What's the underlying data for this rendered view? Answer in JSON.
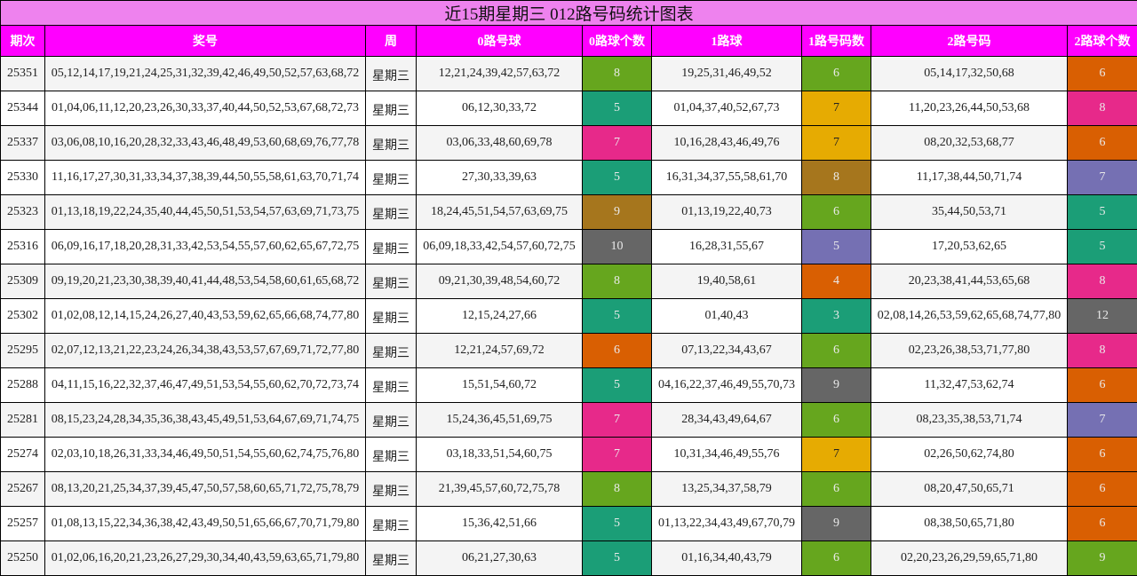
{
  "title": "近15期星期三 012路号码统计图表",
  "headers": [
    "期次",
    "奖号",
    "周",
    "0路号球",
    "0路球个数",
    "1路球",
    "1路号码数",
    "2路号码",
    "2路球个数"
  ],
  "palette": {
    "title_bg": "#ee82ee",
    "header_bg": "#ff00ff",
    "green": "#66a61e",
    "teal": "#1b9e77",
    "pink": "#e7298a",
    "brown": "#a6761d",
    "gray": "#666666",
    "orange": "#d95f02",
    "gold": "#e6ab02",
    "purple": "#7570b3"
  },
  "rows": [
    {
      "issue": "25351",
      "numbers": "05,12,14,17,19,21,24,25,31,32,39,42,46,49,50,52,57,63,68,72",
      "week": "星期三",
      "r0": "12,21,24,39,42,57,63,72",
      "r0_count": "8",
      "r0_color": "#66a61e",
      "r1": "19,25,31,46,49,52",
      "r1_count": "6",
      "r1_color": "#66a61e",
      "r2": "05,14,17,32,50,68",
      "r2_count": "6",
      "r2_color": "#d95f02"
    },
    {
      "issue": "25344",
      "numbers": "01,04,06,11,12,20,23,26,30,33,37,40,44,50,52,53,67,68,72,73",
      "week": "星期三",
      "r0": "06,12,30,33,72",
      "r0_count": "5",
      "r0_color": "#1b9e77",
      "r1": "01,04,37,40,52,67,73",
      "r1_count": "7",
      "r1_color": "#e6ab02",
      "r2": "11,20,23,26,44,50,53,68",
      "r2_count": "8",
      "r2_color": "#e7298a"
    },
    {
      "issue": "25337",
      "numbers": "03,06,08,10,16,20,28,32,33,43,46,48,49,53,60,68,69,76,77,78",
      "week": "星期三",
      "r0": "03,06,33,48,60,69,78",
      "r0_count": "7",
      "r0_color": "#e7298a",
      "r1": "10,16,28,43,46,49,76",
      "r1_count": "7",
      "r1_color": "#e6ab02",
      "r2": "08,20,32,53,68,77",
      "r2_count": "6",
      "r2_color": "#d95f02"
    },
    {
      "issue": "25330",
      "numbers": "11,16,17,27,30,31,33,34,37,38,39,44,50,55,58,61,63,70,71,74",
      "week": "星期三",
      "r0": "27,30,33,39,63",
      "r0_count": "5",
      "r0_color": "#1b9e77",
      "r1": "16,31,34,37,55,58,61,70",
      "r1_count": "8",
      "r1_color": "#a6761d",
      "r2": "11,17,38,44,50,71,74",
      "r2_count": "7",
      "r2_color": "#7570b3"
    },
    {
      "issue": "25323",
      "numbers": "01,13,18,19,22,24,35,40,44,45,50,51,53,54,57,63,69,71,73,75",
      "week": "星期三",
      "r0": "18,24,45,51,54,57,63,69,75",
      "r0_count": "9",
      "r0_color": "#a6761d",
      "r1": "01,13,19,22,40,73",
      "r1_count": "6",
      "r1_color": "#66a61e",
      "r2": "35,44,50,53,71",
      "r2_count": "5",
      "r2_color": "#1b9e77"
    },
    {
      "issue": "25316",
      "numbers": "06,09,16,17,18,20,28,31,33,42,53,54,55,57,60,62,65,67,72,75",
      "week": "星期三",
      "r0": "06,09,18,33,42,54,57,60,72,75",
      "r0_count": "10",
      "r0_color": "#666666",
      "r1": "16,28,31,55,67",
      "r1_count": "5",
      "r1_color": "#7570b3",
      "r2": "17,20,53,62,65",
      "r2_count": "5",
      "r2_color": "#1b9e77"
    },
    {
      "issue": "25309",
      "numbers": "09,19,20,21,23,30,38,39,40,41,44,48,53,54,58,60,61,65,68,72",
      "week": "星期三",
      "r0": "09,21,30,39,48,54,60,72",
      "r0_count": "8",
      "r0_color": "#66a61e",
      "r1": "19,40,58,61",
      "r1_count": "4",
      "r1_color": "#d95f02",
      "r2": "20,23,38,41,44,53,65,68",
      "r2_count": "8",
      "r2_color": "#e7298a"
    },
    {
      "issue": "25302",
      "numbers": "01,02,08,12,14,15,24,26,27,40,43,53,59,62,65,66,68,74,77,80",
      "week": "星期三",
      "r0": "12,15,24,27,66",
      "r0_count": "5",
      "r0_color": "#1b9e77",
      "r1": "01,40,43",
      "r1_count": "3",
      "r1_color": "#1b9e77",
      "r2": "02,08,14,26,53,59,62,65,68,74,77,80",
      "r2_count": "12",
      "r2_color": "#666666"
    },
    {
      "issue": "25295",
      "numbers": "02,07,12,13,21,22,23,24,26,34,38,43,53,57,67,69,71,72,77,80",
      "week": "星期三",
      "r0": "12,21,24,57,69,72",
      "r0_count": "6",
      "r0_color": "#d95f02",
      "r1": "07,13,22,34,43,67",
      "r1_count": "6",
      "r1_color": "#66a61e",
      "r2": "02,23,26,38,53,71,77,80",
      "r2_count": "8",
      "r2_color": "#e7298a"
    },
    {
      "issue": "25288",
      "numbers": "04,11,15,16,22,32,37,46,47,49,51,53,54,55,60,62,70,72,73,74",
      "week": "星期三",
      "r0": "15,51,54,60,72",
      "r0_count": "5",
      "r0_color": "#1b9e77",
      "r1": "04,16,22,37,46,49,55,70,73",
      "r1_count": "9",
      "r1_color": "#666666",
      "r2": "11,32,47,53,62,74",
      "r2_count": "6",
      "r2_color": "#d95f02"
    },
    {
      "issue": "25281",
      "numbers": "08,15,23,24,28,34,35,36,38,43,45,49,51,53,64,67,69,71,74,75",
      "week": "星期三",
      "r0": "15,24,36,45,51,69,75",
      "r0_count": "7",
      "r0_color": "#e7298a",
      "r1": "28,34,43,49,64,67",
      "r1_count": "6",
      "r1_color": "#66a61e",
      "r2": "08,23,35,38,53,71,74",
      "r2_count": "7",
      "r2_color": "#7570b3"
    },
    {
      "issue": "25274",
      "numbers": "02,03,10,18,26,31,33,34,46,49,50,51,54,55,60,62,74,75,76,80",
      "week": "星期三",
      "r0": "03,18,33,51,54,60,75",
      "r0_count": "7",
      "r0_color": "#e7298a",
      "r1": "10,31,34,46,49,55,76",
      "r1_count": "7",
      "r1_color": "#e6ab02",
      "r2": "02,26,50,62,74,80",
      "r2_count": "6",
      "r2_color": "#d95f02"
    },
    {
      "issue": "25267",
      "numbers": "08,13,20,21,25,34,37,39,45,47,50,57,58,60,65,71,72,75,78,79",
      "week": "星期三",
      "r0": "21,39,45,57,60,72,75,78",
      "r0_count": "8",
      "r0_color": "#66a61e",
      "r1": "13,25,34,37,58,79",
      "r1_count": "6",
      "r1_color": "#66a61e",
      "r2": "08,20,47,50,65,71",
      "r2_count": "6",
      "r2_color": "#d95f02"
    },
    {
      "issue": "25257",
      "numbers": "01,08,13,15,22,34,36,38,42,43,49,50,51,65,66,67,70,71,79,80",
      "week": "星期三",
      "r0": "15,36,42,51,66",
      "r0_count": "5",
      "r0_color": "#1b9e77",
      "r1": "01,13,22,34,43,49,67,70,79",
      "r1_count": "9",
      "r1_color": "#666666",
      "r2": "08,38,50,65,71,80",
      "r2_count": "6",
      "r2_color": "#d95f02"
    },
    {
      "issue": "25250",
      "numbers": "01,02,06,16,20,21,23,26,27,29,30,34,40,43,59,63,65,71,79,80",
      "week": "星期三",
      "r0": "06,21,27,30,63",
      "r0_count": "5",
      "r0_color": "#1b9e77",
      "r1": "01,16,34,40,43,79",
      "r1_count": "6",
      "r1_color": "#66a61e",
      "r2": "02,20,23,26,29,59,65,71,80",
      "r2_count": "9",
      "r2_color": "#66a61e"
    }
  ]
}
